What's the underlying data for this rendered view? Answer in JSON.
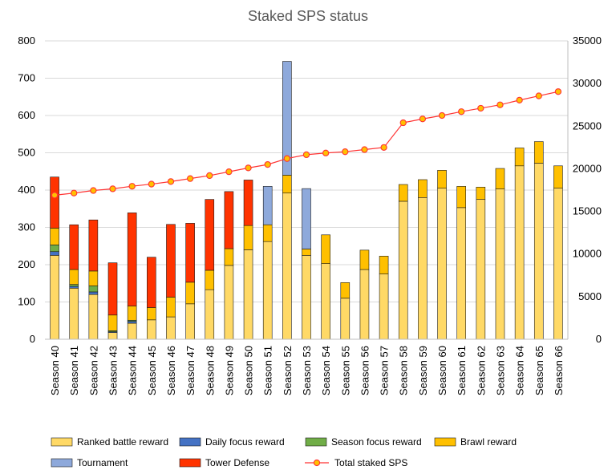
{
  "chart_data": {
    "type": "bar",
    "stacked": true,
    "title": "Staked SPS status",
    "categories": [
      "Season 40",
      "Season 41",
      "Season 42",
      "Season 43",
      "Season 44",
      "Season 45",
      "Season 46",
      "Season 47",
      "Season 48",
      "Season 49",
      "Season 50",
      "Season 51",
      "Season 52",
      "Season 53",
      "Season 54",
      "Season 55",
      "Season 56",
      "Season 57",
      "Season 58",
      "Season 59",
      "Season 60",
      "Season 61",
      "Season 62",
      "Season 63",
      "Season 64",
      "Season 65",
      "Season 66"
    ],
    "ylim": [
      0,
      800
    ],
    "y_ticks": [
      "0",
      "100",
      "200",
      "300",
      "400",
      "500",
      "600",
      "700",
      "800"
    ],
    "y2lim": [
      0,
      35000
    ],
    "y2_ticks": [
      "0",
      "5000",
      "10000",
      "15000",
      "20000",
      "25000",
      "30000",
      "35000"
    ],
    "grid": true,
    "legend_position": "bottom",
    "series": [
      {
        "name": "Ranked battle reward",
        "color": "#FFD966",
        "axis": "left",
        "values": [
          225,
          137,
          120,
          18,
          43,
          52,
          60,
          95,
          133,
          198,
          240,
          262,
          392,
          225,
          203,
          110,
          187,
          175,
          370,
          380,
          405,
          353,
          375,
          403,
          465,
          472,
          405
        ]
      },
      {
        "name": "Daily focus reward",
        "color": "#4472C4",
        "axis": "left",
        "values": [
          10,
          5,
          7,
          2,
          5,
          0,
          0,
          0,
          0,
          0,
          0,
          0,
          0,
          0,
          0,
          0,
          0,
          0,
          0,
          0,
          0,
          0,
          0,
          0,
          0,
          0,
          0
        ]
      },
      {
        "name": "Season focus reward",
        "color": "#70AD47",
        "axis": "left",
        "values": [
          18,
          5,
          16,
          3,
          3,
          0,
          0,
          0,
          0,
          0,
          0,
          0,
          0,
          0,
          0,
          0,
          0,
          0,
          0,
          0,
          0,
          0,
          0,
          0,
          0,
          0,
          0
        ]
      },
      {
        "name": "Brawl reward",
        "color": "#FFC000",
        "axis": "left",
        "values": [
          45,
          40,
          40,
          42,
          38,
          33,
          53,
          58,
          52,
          45,
          65,
          45,
          48,
          17,
          77,
          42,
          52,
          48,
          45,
          48,
          48,
          57,
          33,
          55,
          48,
          58,
          60
        ]
      },
      {
        "name": "Tournament",
        "color": "#8EA9DB",
        "axis": "left",
        "values": [
          0,
          0,
          0,
          0,
          0,
          0,
          0,
          0,
          0,
          0,
          0,
          103,
          305,
          162,
          0,
          0,
          0,
          0,
          0,
          0,
          0,
          0,
          0,
          0,
          0,
          0,
          0
        ]
      },
      {
        "name": "Tower Defense",
        "color": "#FF3300",
        "axis": "left",
        "values": [
          137,
          120,
          137,
          140,
          250,
          135,
          195,
          158,
          190,
          153,
          122,
          0,
          0,
          0,
          0,
          0,
          0,
          0,
          0,
          0,
          0,
          0,
          0,
          0,
          0,
          0,
          0
        ]
      },
      {
        "name": "Total staked SPS",
        "color": "#FF3333",
        "type": "line",
        "axis": "right",
        "values": [
          16900,
          17150,
          17450,
          17650,
          17950,
          18200,
          18500,
          18850,
          19200,
          19650,
          20100,
          20500,
          21200,
          21650,
          21850,
          22000,
          22250,
          22500,
          25400,
          25850,
          26250,
          26700,
          27100,
          27500,
          28050,
          28550,
          29050
        ]
      }
    ]
  }
}
